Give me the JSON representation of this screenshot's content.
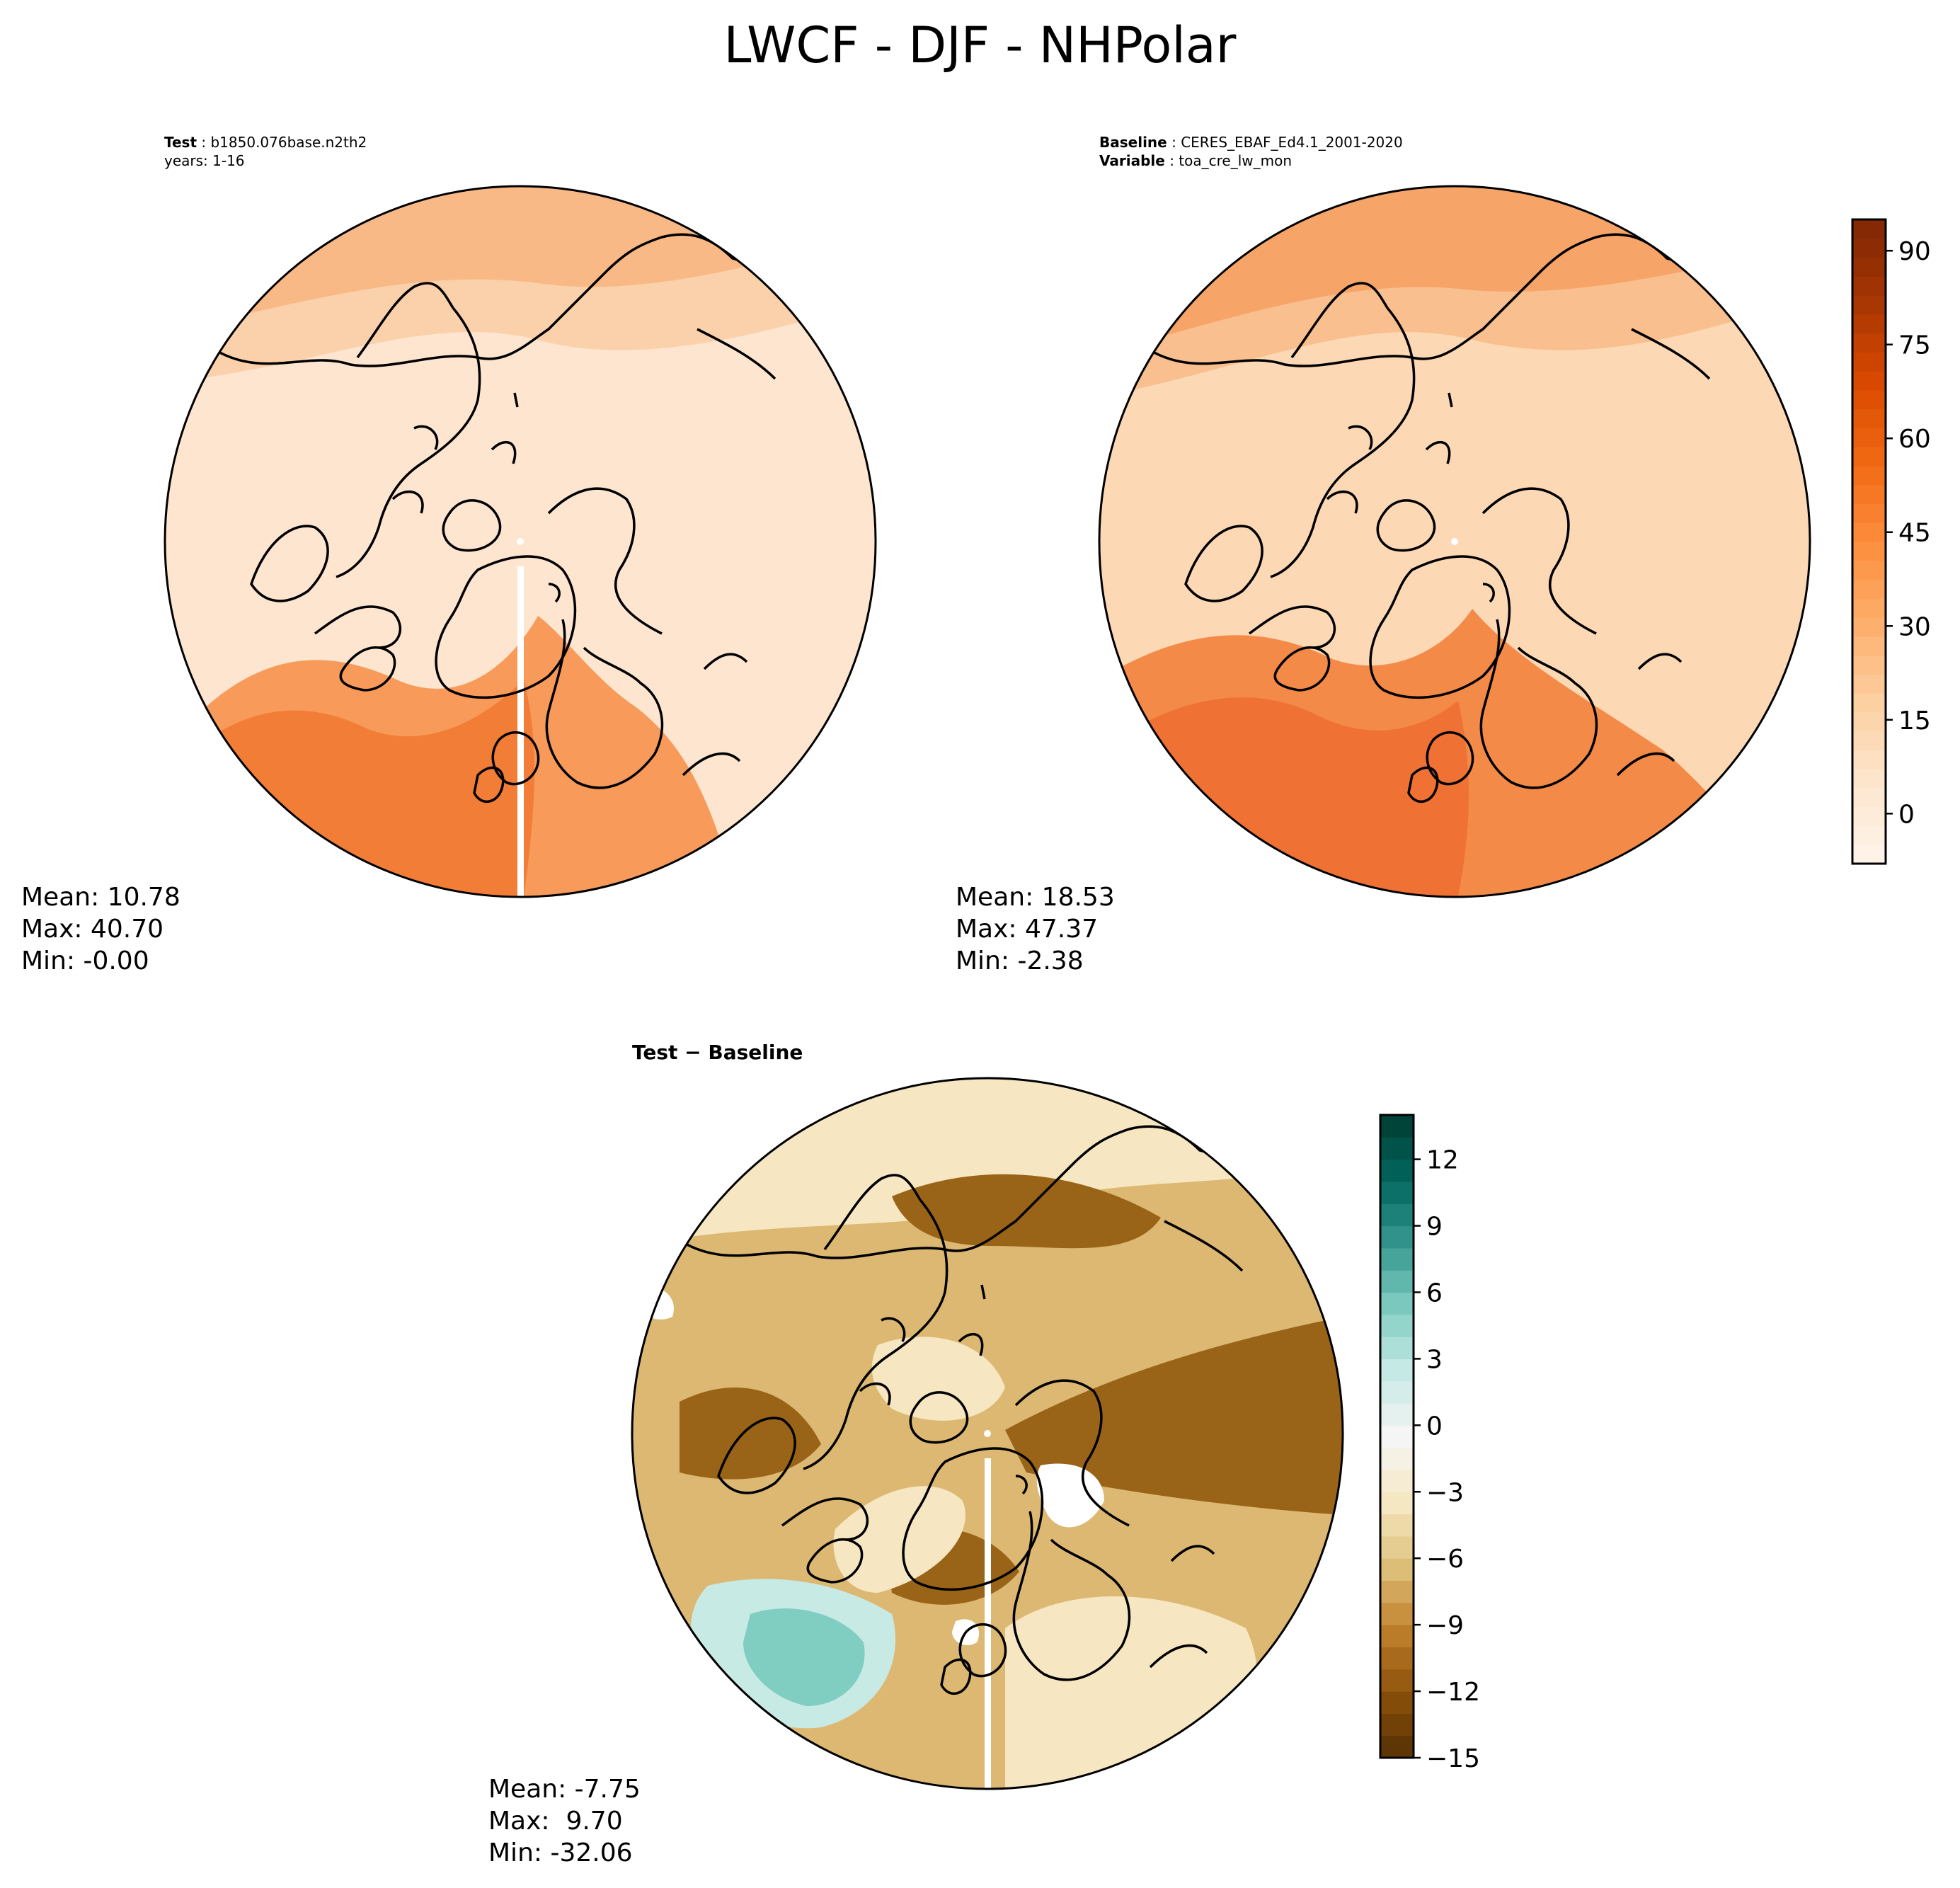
{
  "figure": {
    "title": "LWCF - DJF - NHPolar"
  },
  "panels": {
    "test": {
      "label_key": "Test",
      "label_value": " : b1850.076base.n2th2",
      "years": "years: 1-16",
      "stats": {
        "mean": "Mean: 10.78",
        "max": "Max: 40.70",
        "min": "Min: -0.00"
      }
    },
    "baseline": {
      "label_key": "Baseline",
      "label_value": " : CERES_EBAF_Ed4.1_2001-2020",
      "variable_key": "Variable",
      "variable_value": " : toa_cre_lw_mon",
      "stats": {
        "mean": "Mean: 18.53",
        "max": "Max: 47.37",
        "min": "Min: -2.38"
      }
    },
    "diff": {
      "title": "Test − Baseline",
      "stats": {
        "mean": "Mean: -7.75",
        "max": "Max:  9.70",
        "min": "Min: -32.06"
      }
    }
  },
  "colorbars": {
    "main": {
      "ticks": [
        "90",
        "75",
        "60",
        "45",
        "30",
        "15",
        "0"
      ],
      "tick_values": [
        90,
        75,
        60,
        45,
        30,
        15,
        0
      ],
      "range": [
        -8,
        95
      ],
      "colormap": "Oranges",
      "colors": [
        "#fff5eb",
        "#fde6ce",
        "#fdd0a2",
        "#fdae6b",
        "#fd8d3c",
        "#f16913",
        "#d94801",
        "#a63603",
        "#7f2704"
      ]
    },
    "diff": {
      "ticks": [
        "12",
        "9",
        "6",
        "3",
        "0",
        "−3",
        "−6",
        "−9",
        "−12",
        "−15"
      ],
      "tick_values": [
        12,
        9,
        6,
        3,
        0,
        -3,
        -6,
        -9,
        -12,
        -15
      ],
      "range": [
        -15,
        14
      ],
      "colormap": "BrBG",
      "colors": [
        "#543005",
        "#8c510a",
        "#bf812d",
        "#dfc27d",
        "#f6e8c3",
        "#f5f5f5",
        "#c7eae5",
        "#80cdc1",
        "#35978f",
        "#01665e",
        "#003c30"
      ]
    }
  },
  "fields": {
    "test_colors": [
      "#fde5cf",
      "#fbd1ab",
      "#f9b986",
      "#f79a5a",
      "#f27d36"
    ],
    "baseline_colors": [
      "#fcd8b4",
      "#f9bf8e",
      "#f7a469",
      "#f48a48",
      "#ef7133"
    ],
    "diff_colors": [
      "#f6e6c1",
      "#dcb872",
      "#c08f40",
      "#9a6418",
      "#80cdc1",
      "#c7eae5"
    ],
    "coastline_color": "#000000"
  }
}
